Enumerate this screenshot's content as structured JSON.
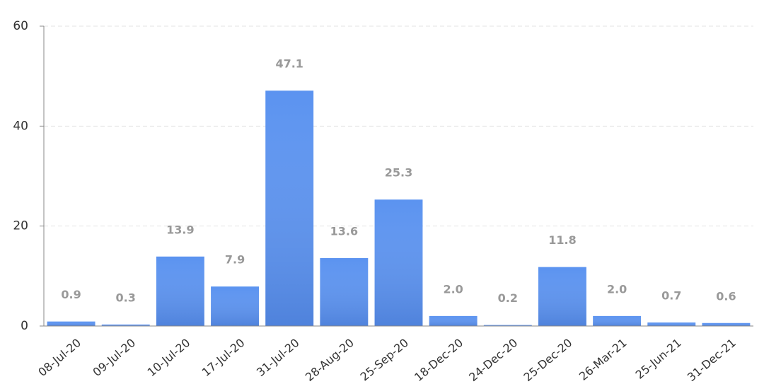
{
  "chart_data": {
    "type": "bar",
    "categories": [
      "08-Jul-20",
      "09-Jul-20",
      "10-Jul-20",
      "17-Jul-20",
      "31-Jul-20",
      "28-Aug-20",
      "25-Sep-20",
      "18-Dec-20",
      "24-Dec-20",
      "25-Dec-20",
      "26-Mar-21",
      "25-Jun-21",
      "31-Dec-21"
    ],
    "values": [
      0.9,
      0.3,
      13.9,
      7.9,
      47.1,
      13.6,
      25.3,
      2.0,
      0.2,
      11.8,
      2.0,
      0.7,
      0.6
    ],
    "value_labels": [
      "0.9",
      "0.3",
      "13.9",
      "7.9",
      "47.1",
      "13.6",
      "25.3",
      "2.0",
      "0.2",
      "11.8",
      "2.0",
      "0.7",
      "0.6"
    ],
    "color": "#5b93f0",
    "ylim": [
      0,
      60
    ],
    "yticks": [
      0,
      20,
      40,
      60
    ],
    "grid": true
  }
}
